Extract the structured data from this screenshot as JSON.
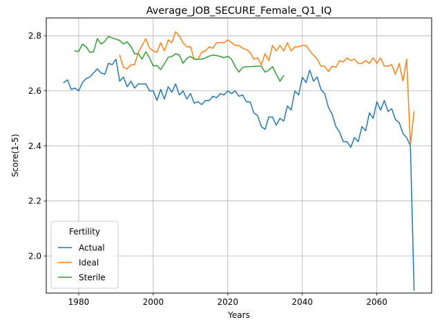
{
  "chart_data": {
    "type": "line",
    "title": "Average_JOB_SECURE_Female_Q1_IQ",
    "xlabel": "Years",
    "ylabel": "Score(1-5)",
    "xlim": [
      1971.3,
      2074.7
    ],
    "ylim": [
      1.865,
      2.865
    ],
    "x_ticks": [
      1980,
      2000,
      2020,
      2040,
      2060
    ],
    "x_tick_labels": [
      "1980",
      "2000",
      "2020",
      "2040",
      "2060"
    ],
    "y_ticks": [
      2.0,
      2.2,
      2.4,
      2.6,
      2.8
    ],
    "y_tick_labels": [
      "2.0",
      "2.2",
      "2.4",
      "2.6",
      "2.8"
    ],
    "grid": true,
    "legend": {
      "title": "Fertility",
      "placement": "lower-left"
    },
    "series": [
      {
        "name": "Actual",
        "color": "#1f77b4",
        "x": [
          1976,
          1977,
          1978,
          1979,
          1980,
          1981,
          1982,
          1983,
          1984,
          1985,
          1986,
          1987,
          1988,
          1989,
          1990,
          1991,
          1992,
          1993,
          1994,
          1995,
          1996,
          1997,
          1998,
          1999,
          2000,
          2001,
          2002,
          2003,
          2004,
          2005,
          2006,
          2007,
          2008,
          2009,
          2010,
          2011,
          2012,
          2013,
          2014,
          2015,
          2016,
          2017,
          2018,
          2019,
          2020,
          2021,
          2022,
          2023,
          2024,
          2025,
          2026,
          2027,
          2028,
          2029,
          2030,
          2031,
          2032,
          2033,
          2034,
          2035,
          2036,
          2037,
          2038,
          2039,
          2040,
          2041,
          2042,
          2043,
          2044,
          2045,
          2046,
          2047,
          2048,
          2049,
          2050,
          2051,
          2052,
          2053,
          2054,
          2055,
          2056,
          2057,
          2058,
          2059,
          2060,
          2061,
          2062,
          2063,
          2064,
          2065,
          2066,
          2067,
          2068,
          2069,
          2070
        ],
        "values": [
          2.63,
          2.64,
          2.605,
          2.61,
          2.6,
          2.63,
          2.645,
          2.65,
          2.665,
          2.68,
          2.665,
          2.66,
          2.7,
          2.695,
          2.715,
          2.635,
          2.65,
          2.615,
          2.635,
          2.61,
          2.625,
          2.625,
          2.625,
          2.6,
          2.6,
          2.565,
          2.605,
          2.57,
          2.615,
          2.595,
          2.625,
          2.585,
          2.6,
          2.57,
          2.59,
          2.555,
          2.56,
          2.55,
          2.565,
          2.565,
          2.58,
          2.575,
          2.59,
          2.585,
          2.6,
          2.59,
          2.6,
          2.58,
          2.585,
          2.56,
          2.56,
          2.52,
          2.51,
          2.47,
          2.46,
          2.505,
          2.505,
          2.475,
          2.5,
          2.49,
          2.545,
          2.53,
          2.6,
          2.585,
          2.65,
          2.63,
          2.675,
          2.635,
          2.65,
          2.605,
          2.59,
          2.54,
          2.515,
          2.47,
          2.45,
          2.415,
          2.415,
          2.395,
          2.43,
          2.415,
          2.47,
          2.455,
          2.52,
          2.5,
          2.56,
          2.53,
          2.565,
          2.525,
          2.535,
          2.495,
          2.485,
          2.445,
          2.43,
          2.4,
          1.875
        ]
      },
      {
        "name": "Ideal",
        "color": "#ff7f0e",
        "x": [
          1991,
          1992,
          1993,
          1994,
          1995,
          1996,
          1997,
          1998,
          1999,
          2000,
          2001,
          2002,
          2003,
          2004,
          2005,
          2006,
          2007,
          2008,
          2009,
          2010,
          2011,
          2012,
          2013,
          2014,
          2015,
          2016,
          2017,
          2018,
          2019,
          2020,
          2021,
          2022,
          2023,
          2024,
          2025,
          2026,
          2027,
          2028,
          2029,
          2030,
          2031,
          2032,
          2033,
          2034,
          2035,
          2036,
          2037,
          2038,
          2039,
          2040,
          2041,
          2042,
          2043,
          2044,
          2045,
          2046,
          2047,
          2048,
          2049,
          2050,
          2051,
          2052,
          2053,
          2054,
          2055,
          2056,
          2057,
          2058,
          2059,
          2060,
          2061,
          2062,
          2063,
          2064,
          2065,
          2066,
          2067,
          2068,
          2069,
          2070
        ],
        "values": [
          2.73,
          2.685,
          2.68,
          2.695,
          2.695,
          2.74,
          2.765,
          2.79,
          2.755,
          2.745,
          2.74,
          2.775,
          2.745,
          2.785,
          2.775,
          2.815,
          2.8,
          2.775,
          2.76,
          2.76,
          2.715,
          2.715,
          2.74,
          2.745,
          2.76,
          2.755,
          2.775,
          2.775,
          2.775,
          2.785,
          2.775,
          2.765,
          2.765,
          2.755,
          2.75,
          2.74,
          2.715,
          2.72,
          2.695,
          2.735,
          2.71,
          2.765,
          2.745,
          2.765,
          2.745,
          2.775,
          2.745,
          2.76,
          2.76,
          2.765,
          2.765,
          2.745,
          2.73,
          2.715,
          2.69,
          2.69,
          2.67,
          2.69,
          2.685,
          2.71,
          2.705,
          2.72,
          2.71,
          2.715,
          2.7,
          2.7,
          2.71,
          2.7,
          2.72,
          2.7,
          2.72,
          2.69,
          2.69,
          2.695,
          2.66,
          2.7,
          2.635,
          2.715,
          2.405,
          2.525
        ]
      },
      {
        "name": "Sterile",
        "color": "#2ca02c",
        "x": [
          1979,
          1980,
          1981,
          1982,
          1983,
          1984,
          1985,
          1986,
          1987,
          1988,
          1989,
          1990,
          1991,
          1992,
          1993,
          1994,
          1995,
          1996,
          1997,
          1998,
          1999,
          2000,
          2001,
          2002,
          2003,
          2004,
          2005,
          2006,
          2007,
          2008,
          2009,
          2010,
          2011,
          2012,
          2013,
          2014,
          2015,
          2016,
          2017,
          2018,
          2019,
          2020,
          2021,
          2022,
          2023,
          2024,
          2025,
          2026,
          2027,
          2028,
          2029,
          2030,
          2031,
          2032,
          2033,
          2034,
          2035
        ],
        "values": [
          2.745,
          2.743,
          2.77,
          2.76,
          2.74,
          2.742,
          2.79,
          2.77,
          2.78,
          2.798,
          2.792,
          2.788,
          2.783,
          2.77,
          2.778,
          2.762,
          2.735,
          2.735,
          2.715,
          2.742,
          2.72,
          2.69,
          2.692,
          2.677,
          2.698,
          2.722,
          2.725,
          2.735,
          2.73,
          2.7,
          2.718,
          2.725,
          2.715,
          2.715,
          2.715,
          2.72,
          2.726,
          2.73,
          2.728,
          2.725,
          2.72,
          2.726,
          2.715,
          2.688,
          2.668,
          2.685,
          2.688,
          2.688,
          2.689,
          2.69,
          2.69,
          2.668,
          2.675,
          2.688,
          2.66,
          2.635,
          2.655
        ]
      }
    ]
  }
}
